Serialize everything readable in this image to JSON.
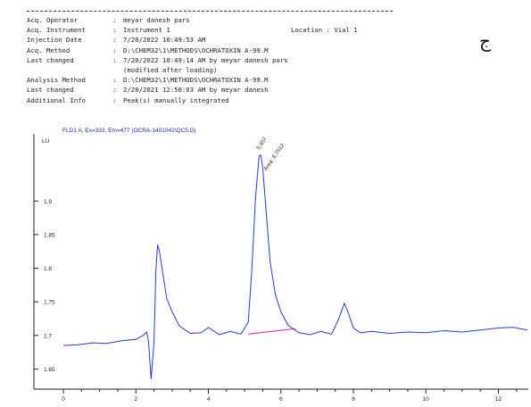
{
  "header": {
    "rows": [
      {
        "key": "Acq. Operator",
        "sep": ":",
        "value": "meyar danesh pars"
      },
      {
        "key": "Acq. Instrument",
        "sep": ":",
        "value": "Instrument 1",
        "extra_key": "Location",
        "extra_value": "Vial 1"
      },
      {
        "key": "Injection Date",
        "sep": ":",
        "value": "7/20/2022 10:49:53 AM"
      },
      {
        "key": "Acq. Method",
        "sep": ":",
        "value": "D:\\CHEM32\\1\\METHODS\\OCHRATOXIN A-99.M"
      },
      {
        "key": "Last changed",
        "sep": ":",
        "value": "7/20/2022 10:49:14 AM by meyar danesh pars"
      },
      {
        "key": "",
        "sep": "",
        "value": "(modified after loading)"
      },
      {
        "key": "Analysis Method",
        "sep": ":",
        "value": "D:\\CHEM32\\1\\METHODS\\OCHRATOXIN A-99.M"
      },
      {
        "key": "Last changed",
        "sep": ":",
        "value": "2/28/2021 12:50:03 AM by meyar danesh"
      },
      {
        "key": "Additional Info",
        "sep": ":",
        "value": "Peak(s) manually integrated"
      }
    ]
  },
  "corner_mark": "ج",
  "chart_data": {
    "type": "line",
    "title": "FLD1 A, Ex=333, Em=477 (OCRA-1401042\\QC5.D)",
    "y_unit": "LU",
    "xlabel": "",
    "ylabel": "",
    "xlim": [
      0,
      12.8
    ],
    "ylim": [
      1.62,
      2.0
    ],
    "x_ticks": [
      0,
      2,
      4,
      6,
      8,
      10,
      12
    ],
    "y_ticks": [
      1.65,
      1.7,
      1.75,
      1.8,
      1.85,
      1.9
    ],
    "y_tick_labels": [
      "1.65",
      "1.7",
      "1.75",
      "1.8",
      "1.85",
      "1.9"
    ],
    "x_tick_labels": [
      "0",
      "2",
      "4",
      "6",
      "8",
      "10",
      "12"
    ],
    "series": [
      {
        "color": "#2b39c9",
        "x": [
          0.0,
          0.4,
          0.8,
          1.2,
          1.6,
          2.0,
          2.2,
          2.3,
          2.35,
          2.42,
          2.5,
          2.55,
          2.6,
          2.65,
          2.75,
          2.85,
          3.0,
          3.2,
          3.5,
          3.8,
          4.0,
          4.3,
          4.6,
          4.9,
          5.1,
          5.2,
          5.3,
          5.4,
          5.45,
          5.5,
          5.6,
          5.7,
          5.85,
          6.0,
          6.2,
          6.5,
          6.8,
          7.1,
          7.4,
          7.6,
          7.75,
          7.85,
          8.0,
          8.2,
          8.5,
          9.0,
          9.5,
          10.0,
          10.5,
          11.0,
          11.5,
          12.0,
          12.4,
          12.8
        ],
        "y": [
          1.685,
          1.686,
          1.689,
          1.688,
          1.692,
          1.694,
          1.7,
          1.705,
          1.69,
          1.635,
          1.69,
          1.795,
          1.835,
          1.825,
          1.79,
          1.755,
          1.735,
          1.714,
          1.703,
          1.704,
          1.712,
          1.701,
          1.706,
          1.702,
          1.72,
          1.8,
          1.905,
          1.968,
          1.968,
          1.95,
          1.88,
          1.81,
          1.76,
          1.735,
          1.715,
          1.704,
          1.701,
          1.706,
          1.702,
          1.725,
          1.748,
          1.735,
          1.711,
          1.704,
          1.706,
          1.703,
          1.705,
          1.704,
          1.707,
          1.705,
          1.708,
          1.711,
          1.712,
          1.708
        ]
      }
    ],
    "baseline": {
      "color": "#e0208f",
      "x": [
        5.1,
        6.4
      ],
      "y": [
        1.702,
        1.71
      ]
    },
    "peak_annotations": [
      {
        "x": 5.45,
        "y": 1.968,
        "label": "5.457"
      },
      {
        "x": 5.5,
        "y": 1.95,
        "label": "Area: 8.7512"
      }
    ]
  },
  "colors": {
    "axis": "#222222",
    "trace": "#2b39c9",
    "baseline": "#e0208f",
    "title": "#1a2aa8"
  }
}
